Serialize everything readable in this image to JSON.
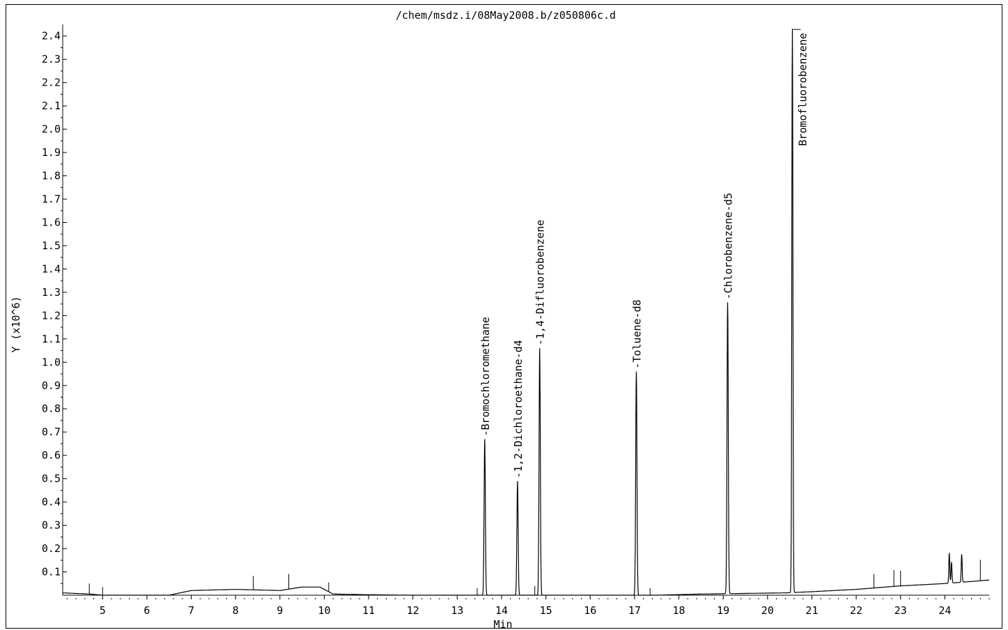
{
  "chart_data": {
    "type": "line",
    "title": "/chem/msdz.i/08May2008.b/z050806c.d",
    "xlabel": "Min",
    "ylabel": "Y (x10^6)",
    "xlim": [
      4.1,
      25.0
    ],
    "ylim": [
      0.0,
      2.45
    ],
    "x_ticks": [
      "5",
      "6",
      "7",
      "8",
      "9",
      "10",
      "11",
      "12",
      "13",
      "14",
      "15",
      "16",
      "17",
      "18",
      "19",
      "20",
      "21",
      "22",
      "23",
      "24"
    ],
    "y_ticks": [
      "0.1",
      "0.2",
      "0.3",
      "0.4",
      "0.5",
      "0.6",
      "0.7",
      "0.8",
      "0.9",
      "1.0",
      "1.1",
      "1.2",
      "1.3",
      "1.4",
      "1.5",
      "1.6",
      "1.7",
      "1.8",
      "1.9",
      "2.0",
      "2.1",
      "2.2",
      "2.3",
      "2.4"
    ],
    "grid": false,
    "baseline": [
      [
        4.1,
        0.01
      ],
      [
        4.7,
        0.005
      ],
      [
        5.0,
        0.0
      ],
      [
        6.5,
        0.0
      ],
      [
        7.0,
        0.02
      ],
      [
        8.0,
        0.025
      ],
      [
        9.0,
        0.02
      ],
      [
        9.5,
        0.035
      ],
      [
        9.9,
        0.035
      ],
      [
        10.2,
        0.005
      ],
      [
        11.0,
        0.002
      ],
      [
        12.0,
        0.0
      ],
      [
        13.4,
        0.0
      ],
      [
        17.5,
        0.0
      ],
      [
        18.5,
        0.005
      ],
      [
        20.4,
        0.01
      ],
      [
        21.0,
        0.015
      ],
      [
        22.0,
        0.025
      ],
      [
        23.0,
        0.04
      ],
      [
        24.0,
        0.05
      ],
      [
        25.0,
        0.065
      ]
    ],
    "peaks": [
      {
        "x": 13.62,
        "height": 0.67,
        "width": 0.04,
        "label": "-Bromochloromethane"
      },
      {
        "x": 14.36,
        "height": 0.49,
        "width": 0.04,
        "label": "-1,2-Dichloroethane-d4"
      },
      {
        "x": 14.86,
        "height": 1.06,
        "width": 0.04,
        "label": "-1,4-Difluorobenzene"
      },
      {
        "x": 17.04,
        "height": 0.96,
        "width": 0.04,
        "label": "-Toluene-d8"
      },
      {
        "x": 19.1,
        "height": 1.25,
        "width": 0.04,
        "label": "-Chlorobenzene-d5"
      },
      {
        "x": 20.56,
        "height": 2.42,
        "width": 0.035,
        "label": "Bromofluorobenzene"
      },
      {
        "x": 24.1,
        "height": 0.13,
        "width": 0.03,
        "label": ""
      },
      {
        "x": 24.38,
        "height": 0.12,
        "width": 0.03,
        "label": ""
      },
      {
        "x": 24.15,
        "height": 0.09,
        "width": 0.03,
        "label": ""
      }
    ],
    "spikes": [
      [
        4.7,
        0.045
      ],
      [
        5.0,
        0.035
      ],
      [
        8.4,
        0.06
      ],
      [
        9.2,
        0.065
      ],
      [
        10.1,
        0.04
      ],
      [
        13.45,
        0.03
      ],
      [
        14.75,
        0.04
      ],
      [
        17.35,
        0.03
      ],
      [
        22.4,
        0.06
      ],
      [
        22.85,
        0.07
      ],
      [
        23.0,
        0.065
      ],
      [
        24.8,
        0.09
      ]
    ]
  }
}
